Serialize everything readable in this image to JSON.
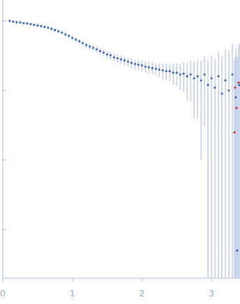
{
  "chart_data": {
    "type": "scatter",
    "log": "y",
    "tick_labels": "x",
    "xlim": [
      0,
      3.41
    ],
    "ylim": [
      0.0002,
      2
    ],
    "xticks": [
      0,
      1,
      2,
      3
    ],
    "yticks": [
      0.001,
      0.01,
      0.1,
      1
    ],
    "series": [
      {
        "color": "#3a62b8",
        "marker": "circle",
        "x": [
          0.1,
          0.15,
          0.2,
          0.25,
          0.3,
          0.35,
          0.4,
          0.45,
          0.5,
          0.55,
          0.6,
          0.65,
          0.7,
          0.75,
          0.8,
          0.85,
          0.9,
          0.95,
          1.0,
          1.05,
          1.1,
          1.15,
          1.2,
          1.25,
          1.3,
          1.35,
          1.4,
          1.45,
          1.5,
          1.55,
          1.6,
          1.65,
          1.7,
          1.75,
          1.8,
          1.85,
          1.9,
          1.95,
          2.0,
          2.05,
          2.1,
          2.15,
          2.2,
          2.25,
          2.3,
          2.35,
          2.4,
          2.45,
          2.5,
          2.55,
          2.6,
          2.65,
          2.7,
          2.75,
          2.8,
          2.85,
          2.9,
          2.95,
          3.0,
          3.05,
          3.1,
          3.15,
          3.2,
          3.25,
          3.3,
          3.35,
          3.4,
          3.37
        ],
        "values": [
          1.0,
          0.98,
          0.96,
          0.95,
          0.93,
          0.92,
          0.9,
          0.88,
          0.86,
          0.84,
          0.82,
          0.8,
          0.77,
          0.74,
          0.71,
          0.68,
          0.64,
          0.61,
          0.57,
          0.54,
          0.51,
          0.48,
          0.45,
          0.43,
          0.41,
          0.39,
          0.37,
          0.35,
          0.33,
          0.32,
          0.3,
          0.29,
          0.28,
          0.27,
          0.26,
          0.25,
          0.24,
          0.235,
          0.23,
          0.22,
          0.215,
          0.21,
          0.205,
          0.2,
          0.195,
          0.19,
          0.19,
          0.18,
          0.18,
          0.17,
          0.175,
          0.16,
          0.17,
          0.15,
          0.16,
          0.14,
          0.17,
          0.12,
          0.15,
          0.11,
          0.16,
          0.09,
          0.14,
          0.1,
          0.17,
          0.08,
          0.12,
          0.0005
        ],
        "errors": [
          0.05,
          0.05,
          0.05,
          0.04,
          0.04,
          0.04,
          0.04,
          0.04,
          0.04,
          0.04,
          0.04,
          0.04,
          0.04,
          0.04,
          0.04,
          0.04,
          0.04,
          0.04,
          0.04,
          0.04,
          0.04,
          0.04,
          0.04,
          0.04,
          0.04,
          0.04,
          0.04,
          0.04,
          0.04,
          0.04,
          0.04,
          0.04,
          0.04,
          0.04,
          0.04,
          0.04,
          0.04,
          0.04,
          0.04,
          0.04,
          0.04,
          0.04,
          0.04,
          0.045,
          0.05,
          0.05,
          0.055,
          0.06,
          0.065,
          0.07,
          0.08,
          0.09,
          0.1,
          0.11,
          0.12,
          0.13,
          0.14,
          0.15,
          0.17,
          0.18,
          0.2,
          0.22,
          0.25,
          0.27,
          0.3,
          0.32,
          0.35,
          0.3
        ]
      },
      {
        "color": "#d9302b",
        "marker": "circle",
        "x": [
          3.34,
          3.36,
          3.33,
          3.39
        ],
        "values": [
          0.11,
          0.056,
          0.025,
          0.13
        ],
        "errors": [
          0.2,
          0.25,
          0.25,
          0.3
        ]
      }
    ]
  }
}
